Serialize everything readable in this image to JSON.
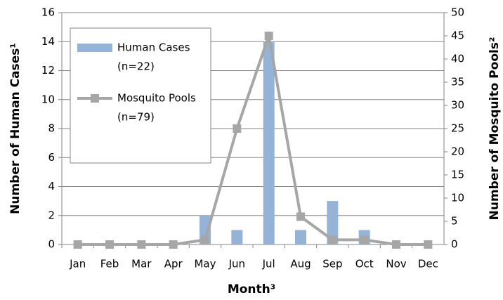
{
  "chart_data": {
    "type": "bar-line",
    "xlabel": "Month³",
    "ylabel": "Number of Human Cases¹",
    "y2label": "Number of Mosquito Pools²",
    "categories": [
      "Jan",
      "Feb",
      "Mar",
      "Apr",
      "May",
      "Jun",
      "Jul",
      "Aug",
      "Sep",
      "Oct",
      "Nov",
      "Dec"
    ],
    "series": [
      {
        "name": "Human Cases",
        "note": "(n=22)",
        "type": "bar",
        "color": "#95b3d7",
        "values": [
          0,
          0,
          0,
          0,
          2,
          1,
          14,
          1,
          3,
          1,
          0,
          0
        ]
      },
      {
        "name": "Mosquito Pools",
        "note": "(n=79)",
        "type": "line",
        "axis": "y2",
        "color": "#a6a6a6",
        "values": [
          0,
          0,
          0,
          0,
          1,
          25,
          45,
          6,
          1,
          1,
          0,
          0
        ]
      }
    ],
    "ylim": [
      0,
      16
    ],
    "yticks": [
      0,
      2,
      4,
      6,
      8,
      10,
      12,
      14,
      16
    ],
    "y2lim": [
      0,
      50
    ],
    "y2ticks": [
      0,
      5,
      10,
      15,
      20,
      25,
      30,
      35,
      40,
      45,
      50
    ],
    "grid": true,
    "legend": "upper left"
  }
}
